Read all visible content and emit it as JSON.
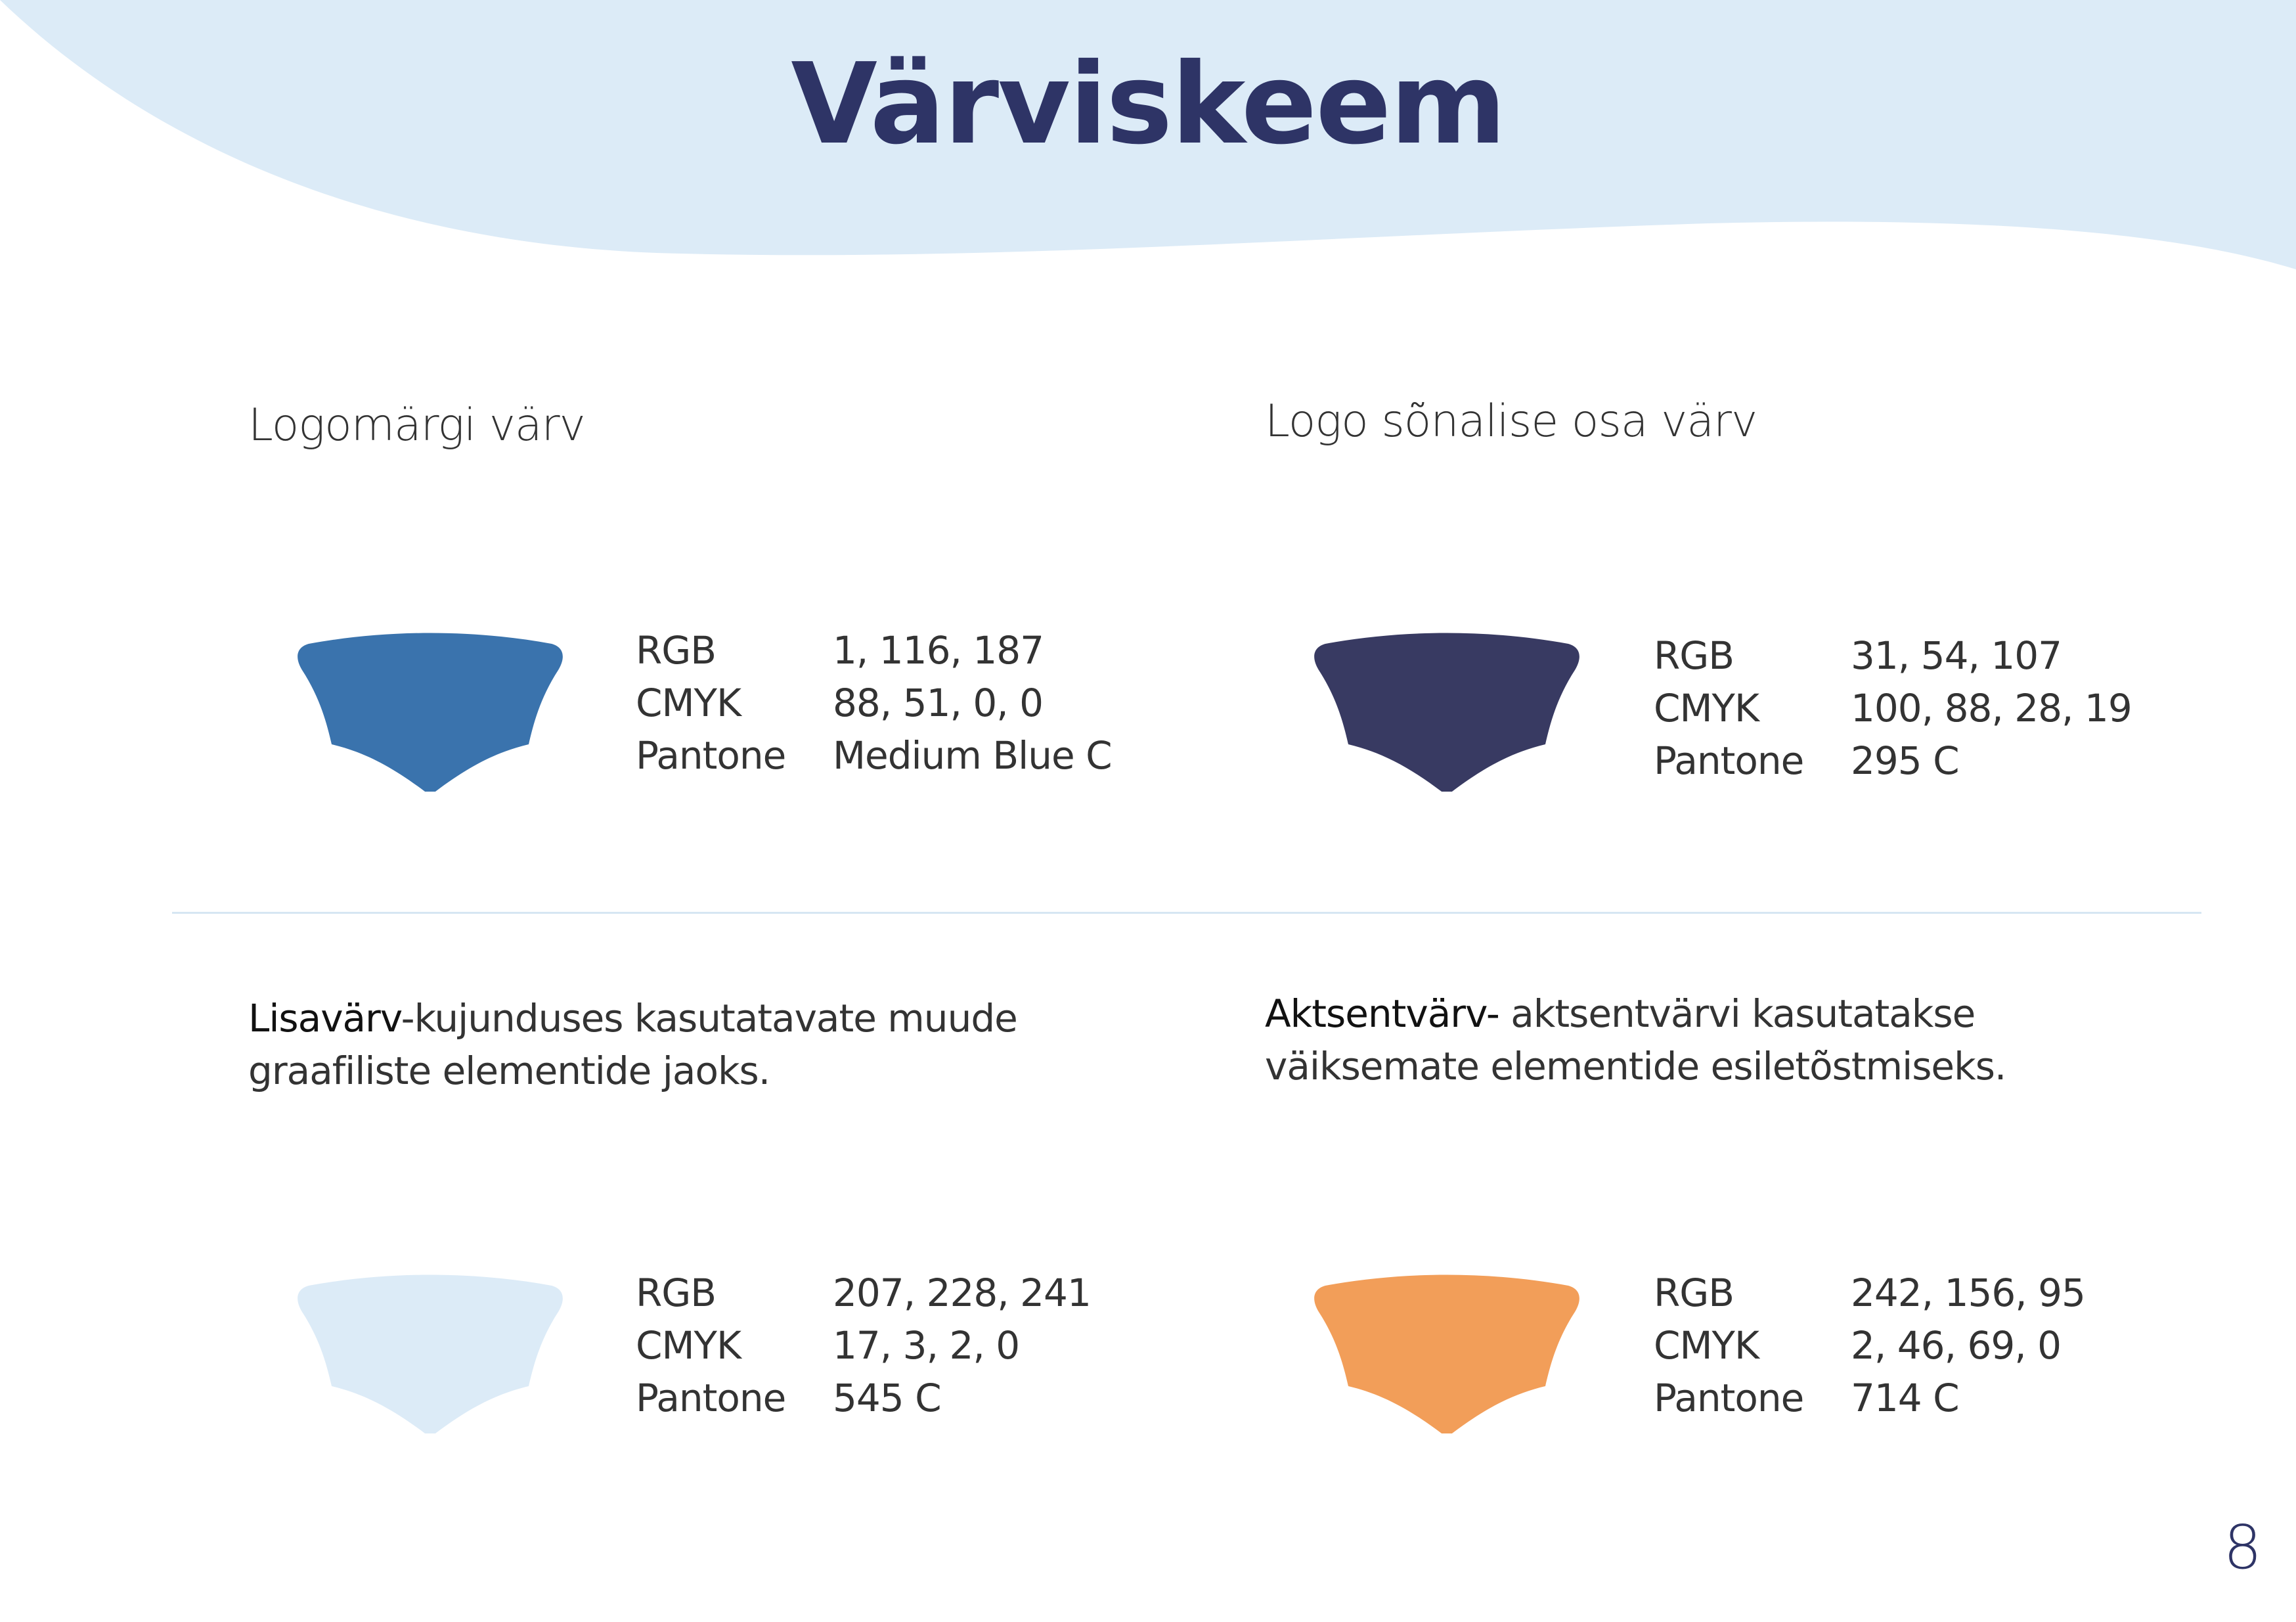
{
  "page": {
    "title": "Värviskeem",
    "page_number": "8",
    "wave_color": "#dcebf7"
  },
  "colors": [
    {
      "heading": "Logomärgi värv",
      "description_bold": "",
      "description": "",
      "swatch_color": "#3a73ad",
      "specs": [
        {
          "label": "RGB",
          "value": "1, 116, 187"
        },
        {
          "label": "CMYK",
          "value": "88, 51, 0, 0"
        },
        {
          "label": "Pantone",
          "value": "Medium Blue C"
        }
      ]
    },
    {
      "heading": "Logo sõnalise osa värv",
      "description_bold": "",
      "description": "",
      "swatch_color": "#383a62",
      "specs": [
        {
          "label": "RGB",
          "value": "31, 54, 107"
        },
        {
          "label": "CMYK",
          "value": "100, 88, 28, 19"
        },
        {
          "label": "Pantone",
          "value": "295 C"
        }
      ]
    },
    {
      "heading": "",
      "description_bold": "Lisavärv",
      "description_line1": "-kujunduses kasutatavate muude",
      "description_line2": "graafiliste elementide jaoks.",
      "swatch_color": "#dcebf7",
      "specs": [
        {
          "label": "RGB",
          "value": "207, 228, 241"
        },
        {
          "label": "CMYK",
          "value": "17, 3, 2, 0"
        },
        {
          "label": "Pantone",
          "value": "545 C"
        }
      ]
    },
    {
      "heading": "",
      "description_bold": "Aktsentvärv-",
      "description_line1": " aktsentvärvi kasutatakse",
      "description_line2": "väiksemate elementide esiletõstmiseks.",
      "swatch_color": "#f29e59",
      "specs": [
        {
          "label": "RGB",
          "value": "242, 156, 95"
        },
        {
          "label": "CMYK",
          "value": "2, 46, 69, 0"
        },
        {
          "label": "Pantone",
          "value": "714 C"
        }
      ]
    }
  ]
}
